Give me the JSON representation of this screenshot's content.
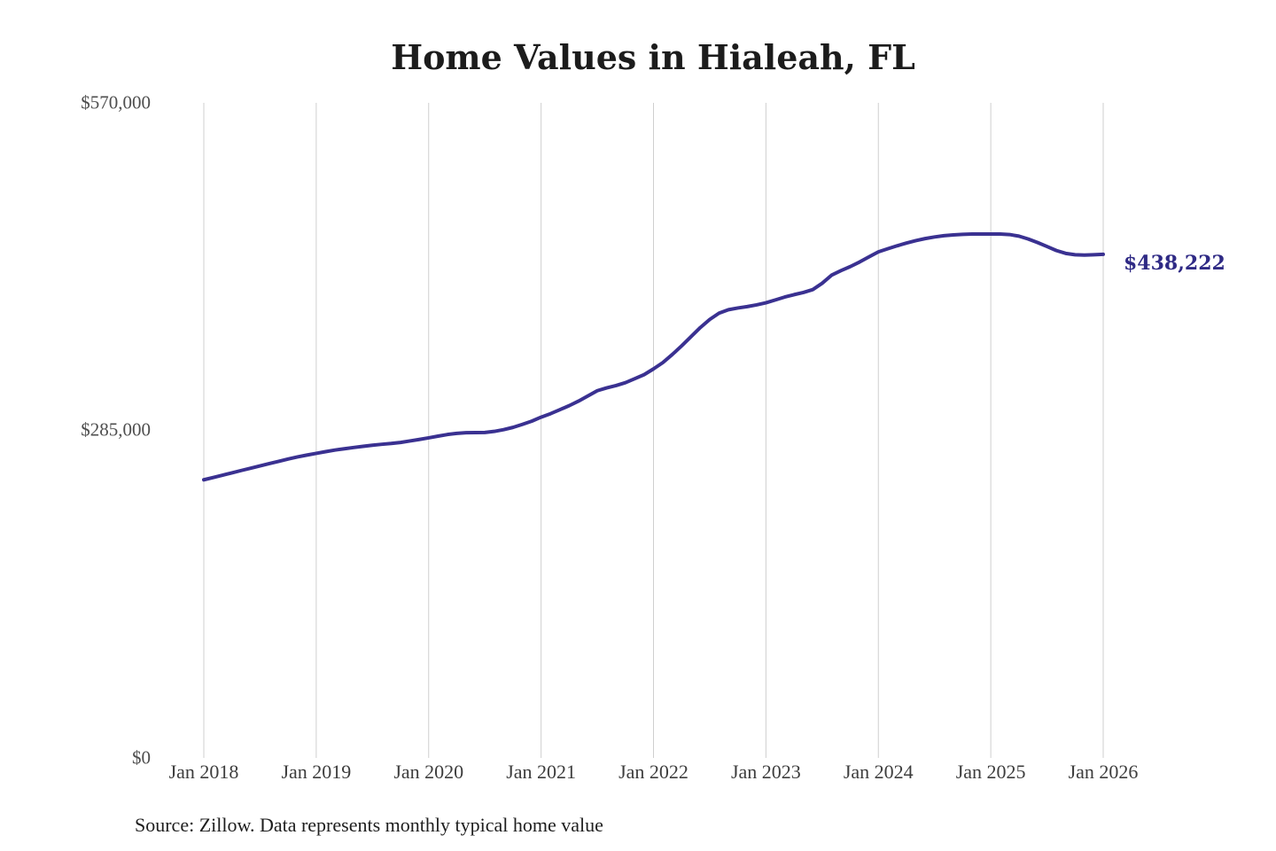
{
  "title": "Home Values in Hialeah, FL",
  "source_note": "Source: Zillow. Data represents monthly typical home value",
  "end_label": "$438,222",
  "colors": {
    "line": "#3a3191",
    "end_label": "#2f2a85",
    "gridline": "#cfcfcf",
    "title": "#1c1c1c",
    "y_tick": "#4e4e4e",
    "x_tick": "#3d3d3d"
  },
  "chart_data": {
    "type": "line",
    "title": "Home Values in Hialeah, FL",
    "xlabel": "",
    "ylabel": "",
    "ylim": [
      0,
      570000
    ],
    "grid": "vertical-only",
    "legend": "none",
    "y_ticks": [
      {
        "label": "$570,000",
        "value": 570000
      },
      {
        "label": "$285,000",
        "value": 285000
      },
      {
        "label": "$0",
        "value": 0
      }
    ],
    "x_tick_labels": [
      "Jan 2018",
      "Jan 2019",
      "Jan 2020",
      "Jan 2021",
      "Jan 2022",
      "Jan 2023",
      "Jan 2024",
      "Jan 2025",
      "Jan 2026"
    ],
    "annotation": {
      "text": "$438,222",
      "value": 438222,
      "position": "line-end"
    },
    "series": [
      {
        "name": "Monthly typical home value",
        "start_month": "Jan 2018",
        "end_month": "Jan 2026",
        "final_value": 438222,
        "values": [
          242000,
          244000,
          246000,
          248000,
          250100,
          252100,
          254100,
          256100,
          258100,
          260100,
          261900,
          263500,
          265000,
          266500,
          267900,
          269000,
          270100,
          271100,
          272100,
          272900,
          273600,
          274500,
          275800,
          277100,
          278500,
          280000,
          281400,
          282400,
          283000,
          283100,
          283200,
          284100,
          285600,
          287600,
          290200,
          293000,
          296500,
          299500,
          303000,
          306500,
          310500,
          315000,
          319500,
          322000,
          324000,
          326500,
          330000,
          333500,
          338500,
          344000,
          351000,
          358500,
          366500,
          374500,
          381500,
          387000,
          390000,
          391500,
          392700,
          394200,
          396000,
          398500,
          401000,
          403100,
          405000,
          407500,
          413000,
          420000,
          424000,
          427500,
          431500,
          436000,
          440300,
          443000,
          445600,
          448000,
          450100,
          451900,
          453300,
          454400,
          455100,
          455600,
          455800,
          455800,
          455800,
          455800,
          455400,
          454000,
          451500,
          448400,
          445000,
          441500,
          439000,
          437800,
          437500,
          437800,
          438222
        ]
      }
    ]
  }
}
